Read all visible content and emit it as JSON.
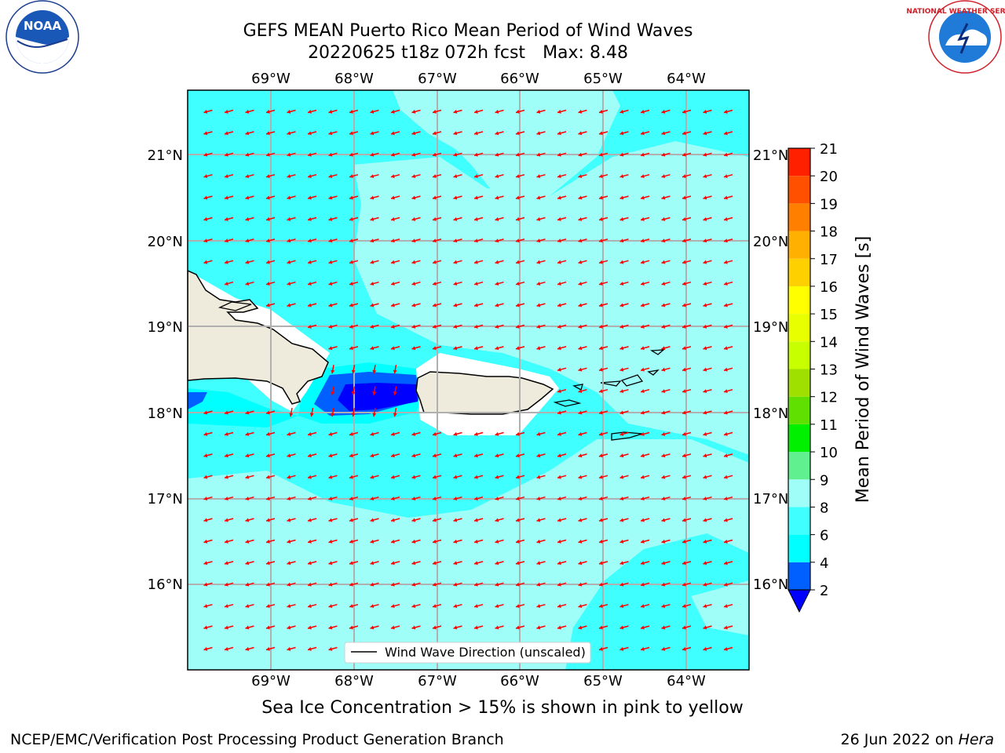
{
  "header": {
    "title_line1": "GEFS MEAN Puerto Rico Mean Period of Wind Waves",
    "title_date": "20220625 t18z 072h fcst",
    "title_max": "Max: 8.48"
  },
  "logos": {
    "left": "noara-logo",
    "right": "nws-logo",
    "left_icon": "noaa-logo-icon",
    "right_icon": "nws-logo-icon",
    "left_text": "NOAA",
    "right_text": "NATIONAL WEATHER SERVICE"
  },
  "map": {
    "lon_labels": [
      "69°W",
      "68°W",
      "67°W",
      "66°W",
      "65°W",
      "64°W"
    ],
    "lat_labels": [
      "21°N",
      "20°N",
      "19°N",
      "18°N",
      "17°N",
      "16°N"
    ],
    "legend_label": "Wind Wave Direction (unscaled)",
    "arrow_color": "#ff0000",
    "land_color": "#efebdc"
  },
  "colorbar": {
    "title": "Mean Period of Wind Waves [s]",
    "tick_labels": [
      "2",
      "4",
      "6",
      "8",
      "9",
      "10",
      "11",
      "12",
      "13",
      "14",
      "15",
      "16",
      "17",
      "18",
      "19",
      "20",
      "21"
    ],
    "colors": [
      "#0060ff",
      "#00ffff",
      "#3fffff",
      "#9ffff8",
      "#60f090",
      "#00f000",
      "#60e000",
      "#a0e000",
      "#c8ff00",
      "#e8ff00",
      "#ffff00",
      "#ffd000",
      "#ffb000",
      "#ff8000",
      "#ff5000",
      "#ff2000"
    ],
    "under_color": "#0000ff"
  },
  "chart_data": {
    "type": "heatmap",
    "title": "GEFS MEAN Puerto Rico Mean Period of Wind Waves",
    "subtitle": "20220625 t18z 072h fcst   Max: 8.48",
    "variable": "Mean Period of Wind Waves [s]",
    "max": 8.48,
    "xlim": [
      -70,
      -63.3
    ],
    "ylim": [
      15,
      21.7
    ],
    "levels": [
      2,
      4,
      6,
      8,
      9,
      10,
      11,
      12,
      13,
      14,
      15,
      16,
      17,
      18,
      19,
      20,
      21
    ]
  },
  "footer": {
    "ice_note": "Sea Ice Concentration > 15% is shown in pink to yellow",
    "left": "NCEP/EMC/Verification Post Processing Product Generation Branch",
    "right_prefix": "26 Jun 2022 on",
    "right_host": "Hera"
  }
}
